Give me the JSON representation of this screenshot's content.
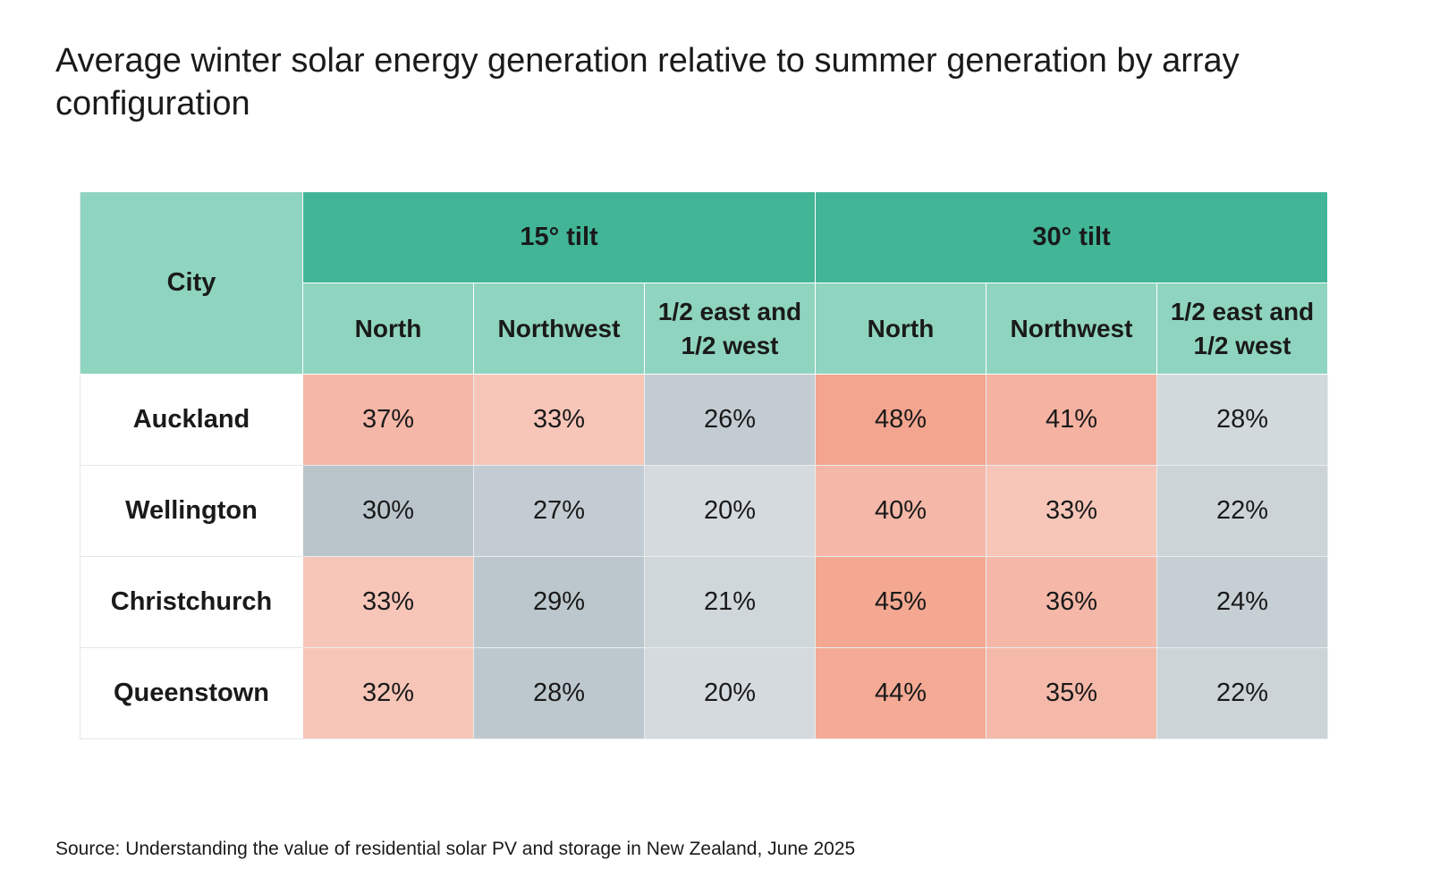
{
  "title": "Average winter solar energy generation relative to summer generation by array configuration",
  "source": "Source: Understanding the value of residential solar PV and storage in New Zealand, June 2025",
  "colors": {
    "group_header": "#42b597",
    "sub_header": "#8fd4be",
    "scale_low": "#b6c3ca",
    "scale_mid": "#d4dadd",
    "scale_high": "#f4a58f"
  },
  "chart_data": {
    "type": "table",
    "title": "Average winter solar energy generation relative to summer generation by array configuration",
    "row_header_label": "City",
    "groups": [
      {
        "label": "15° tilt",
        "columns": [
          "North",
          "Northwest",
          "1/2 east and 1/2 west"
        ]
      },
      {
        "label": "30° tilt",
        "columns": [
          "North",
          "Northwest",
          "1/2 east and 1/2 west"
        ]
      }
    ],
    "rows": [
      {
        "city": "Auckland",
        "values": [
          "37%",
          "33%",
          "26%",
          "48%",
          "41%",
          "28%"
        ]
      },
      {
        "city": "Wellington",
        "values": [
          "30%",
          "27%",
          "20%",
          "40%",
          "33%",
          "22%"
        ]
      },
      {
        "city": "Christchurch",
        "values": [
          "33%",
          "29%",
          "21%",
          "45%",
          "36%",
          "24%"
        ]
      },
      {
        "city": "Queenstown",
        "values": [
          "32%",
          "28%",
          "20%",
          "44%",
          "35%",
          "22%"
        ]
      }
    ],
    "cell_colors": [
      [
        "#f5b7a7",
        "#f7c6b9",
        "#c3ccd2",
        "#f4a58f",
        "#f5b2a1",
        "#d2d9dc"
      ],
      [
        "#b9c5cb",
        "#c3ccd2",
        "#d4dadd",
        "#f5b7a7",
        "#f7c6b9",
        "#ccd4d8"
      ],
      [
        "#f7c6b9",
        "#bcc7cd",
        "#d0d7db",
        "#f4a891",
        "#f5b8a8",
        "#c6cfd4"
      ],
      [
        "#f7c5b8",
        "#bdc8ce",
        "#d4dadd",
        "#f4aa94",
        "#f5b9a9",
        "#ccd4d8"
      ]
    ]
  }
}
